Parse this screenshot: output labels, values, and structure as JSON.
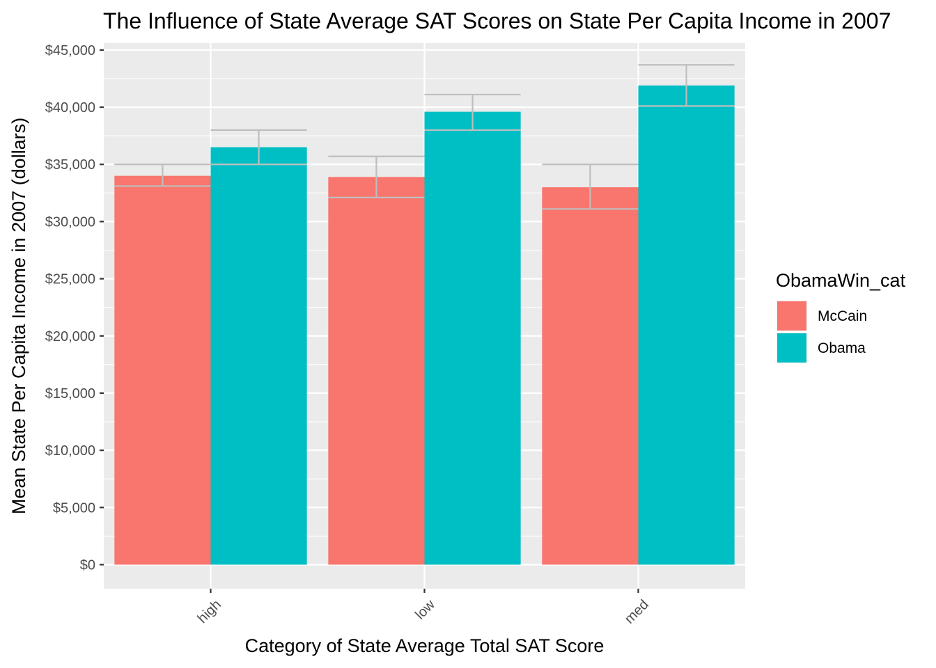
{
  "chart_data": {
    "type": "bar",
    "title": "The Influence of State Average SAT Scores on State Per Capita Income in 2007",
    "xlabel": "Category of State Average Total SAT Score",
    "ylabel": "Mean State Per Capita Income in 2007 (dollars)",
    "categories": [
      "high",
      "low",
      "med"
    ],
    "series": [
      {
        "name": "McCain",
        "color": "#F8766D",
        "values": [
          34000,
          33900,
          33000
        ],
        "error_low": [
          33100,
          32100,
          31100
        ],
        "error_high": [
          35000,
          35700,
          35000
        ]
      },
      {
        "name": "Obama",
        "color": "#00BFC4",
        "values": [
          36500,
          39600,
          41900
        ],
        "error_low": [
          35000,
          38000,
          40100
        ],
        "error_high": [
          38000,
          41100,
          43700
        ]
      }
    ],
    "ylim": [
      -2100,
      45600
    ],
    "y_ticks": [
      0,
      5000,
      10000,
      15000,
      20000,
      25000,
      30000,
      35000,
      40000,
      45000
    ],
    "y_tick_labels": [
      "$0",
      "$5,000",
      "$10,000",
      "$15,000",
      "$20,000",
      "$25,000",
      "$30,000",
      "$35,000",
      "$40,000",
      "$45,000"
    ],
    "x_tick_rotation": 45,
    "legend_title": "ObamaWin_cat",
    "legend_position": "right",
    "grid": true,
    "panel_background": "#EBEBEB",
    "gridline_color": "#FFFFFF",
    "errorbar_color": "#BEBEBE"
  }
}
